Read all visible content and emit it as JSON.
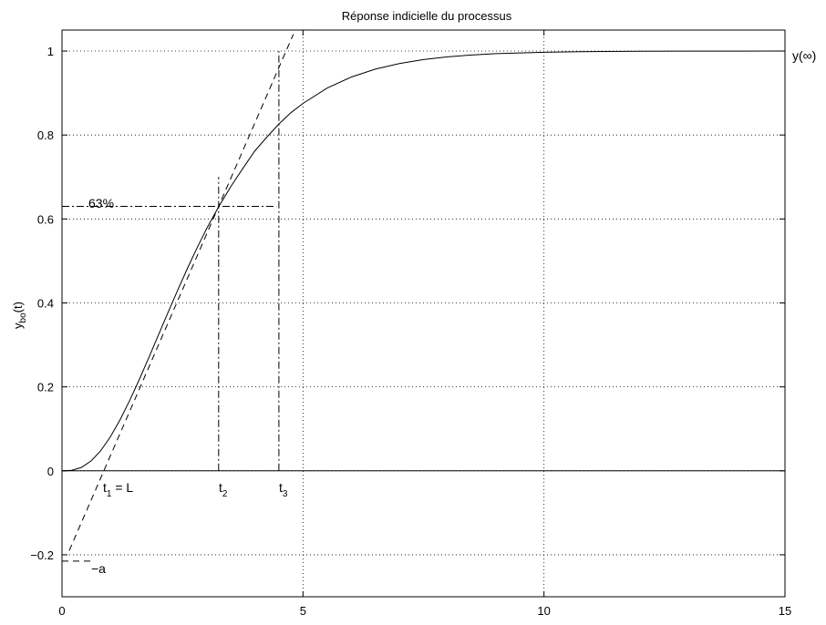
{
  "chart_data": {
    "type": "line",
    "title": "Réponse indicielle du processus",
    "xlabel": "",
    "ylabel": "y",
    "ylabel_sub": "bo",
    "ylabel_suffix": "(t)",
    "xlim": [
      0,
      15
    ],
    "ylim": [
      -0.3,
      1.05
    ],
    "grid": true,
    "x_ticks": [
      0,
      5,
      10,
      15
    ],
    "x_tick_labels": [
      "0",
      "5",
      "10",
      "15"
    ],
    "y_ticks": [
      -0.2,
      0,
      0.2,
      0.4,
      0.6,
      0.8,
      1
    ],
    "y_tick_labels": [
      "−0.2",
      "0",
      "0.2",
      "0.4",
      "0.6",
      "0.8",
      "1"
    ],
    "series": [
      {
        "style": "solid",
        "x": [
          0,
          0.2,
          0.4,
          0.6,
          0.8,
          1.0,
          1.2,
          1.4,
          1.6,
          1.8,
          2.0,
          2.2,
          2.4,
          2.6,
          2.8,
          3.0,
          3.25,
          3.5,
          3.75,
          4.0,
          4.25,
          4.5,
          4.75,
          5.0,
          5.5,
          6.0,
          6.5,
          7.0,
          7.5,
          8.0,
          8.5,
          9.0,
          10.0,
          11.0,
          12.0,
          13.0,
          14.0,
          15.0
        ],
        "y": [
          0.0,
          0.0011,
          0.0079,
          0.0231,
          0.0474,
          0.0803,
          0.1205,
          0.1665,
          0.2166,
          0.2694,
          0.3233,
          0.3773,
          0.4303,
          0.4816,
          0.5305,
          0.5768,
          0.6289,
          0.6767,
          0.72,
          0.7619,
          0.795,
          0.8262,
          0.8532,
          0.8753,
          0.9118,
          0.938,
          0.957,
          0.9703,
          0.9797,
          0.9862,
          0.9907,
          0.9938,
          0.9972,
          0.9988,
          0.9995,
          0.9998,
          0.9999,
          1.0
        ]
      },
      {
        "style": "dashed",
        "x": [
          0.15,
          4.8
        ],
        "y": [
          -0.19,
          1.04
        ]
      }
    ],
    "reference_lines": [
      {
        "style": "solid",
        "orientation": "horizontal",
        "y": 0,
        "x_range": [
          0,
          15
        ]
      },
      {
        "style": "dashdot",
        "orientation": "horizontal",
        "y": 0.63,
        "x_range": [
          0,
          4.45
        ]
      },
      {
        "style": "dashdot",
        "orientation": "vertical",
        "x": 3.25,
        "y_range": [
          0,
          0.7
        ]
      },
      {
        "style": "dashdot",
        "orientation": "vertical",
        "x": 4.5,
        "y_range": [
          0,
          1
        ]
      },
      {
        "style": "dashed",
        "orientation": "horizontal",
        "y": -0.215,
        "x_range": [
          0,
          0.6
        ]
      }
    ],
    "annotations": {
      "y_inf": "y(∞)",
      "pct63": "63%",
      "t1_main": "t",
      "t1_sub": "1",
      "t1_suffix": " = L",
      "t2_main": "t",
      "t2_sub": "2",
      "t3_main": "t",
      "t3_sub": "3",
      "a_label": "−a"
    }
  }
}
